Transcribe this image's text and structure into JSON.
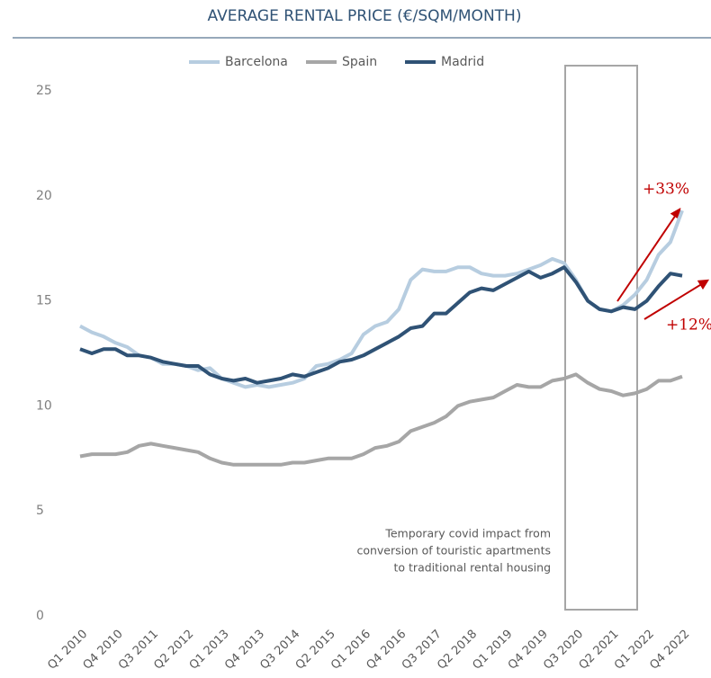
{
  "chart_data": {
    "type": "line",
    "title": "AVERAGE RENTAL PRICE (€/SQM/MONTH)",
    "categories": [
      "Q1 2010",
      null,
      null,
      "Q4 2010",
      null,
      null,
      "Q3 2011",
      null,
      null,
      "Q2 2012",
      null,
      null,
      "Q1 2013",
      null,
      null,
      "Q4 2013",
      null,
      null,
      "Q3 2014",
      null,
      null,
      "Q2 2015",
      null,
      null,
      "Q1 2016",
      null,
      null,
      "Q4 2016",
      null,
      null,
      "Q3 2017",
      null,
      null,
      "Q2 2018",
      null,
      null,
      "Q1 2019",
      null,
      null,
      "Q4 2019",
      null,
      null,
      "Q3 2020",
      null,
      null,
      "Q2 2021",
      null,
      null,
      "Q1 2022",
      null,
      null,
      "Q4 2022"
    ],
    "series": [
      {
        "name": "Barcelona",
        "color": "#b7cde0",
        "values": [
          13.8,
          13.5,
          13.3,
          13.0,
          12.8,
          12.4,
          12.3,
          12.0,
          12.0,
          11.9,
          11.7,
          11.8,
          11.3,
          11.1,
          10.9,
          11.0,
          10.9,
          11.0,
          11.1,
          11.3,
          11.9,
          12.0,
          12.2,
          12.5,
          13.4,
          13.8,
          14.0,
          14.6,
          16.0,
          16.5,
          16.4,
          16.4,
          16.6,
          16.6,
          16.3,
          16.2,
          16.2,
          16.3,
          16.5,
          16.7,
          17.0,
          16.8,
          16.0,
          15.0,
          14.6,
          14.5,
          14.8,
          15.3,
          16.0,
          17.2,
          17.8,
          19.3
        ]
      },
      {
        "name": "Spain",
        "color": "#a6a6a6",
        "values": [
          7.6,
          7.7,
          7.7,
          7.7,
          7.8,
          8.1,
          8.2,
          8.1,
          8.0,
          7.9,
          7.8,
          7.5,
          7.3,
          7.2,
          7.2,
          7.2,
          7.2,
          7.2,
          7.3,
          7.3,
          7.4,
          7.5,
          7.5,
          7.5,
          7.7,
          8.0,
          8.1,
          8.3,
          8.8,
          9.0,
          9.2,
          9.5,
          10.0,
          10.2,
          10.3,
          10.4,
          10.7,
          11.0,
          10.9,
          10.9,
          11.2,
          11.3,
          11.5,
          11.1,
          10.8,
          10.7,
          10.5,
          10.6,
          10.8,
          11.2,
          11.2,
          11.4
        ]
      },
      {
        "name": "Madrid",
        "color": "#2f5275",
        "values": [
          12.7,
          12.5,
          12.7,
          12.7,
          12.4,
          12.4,
          12.3,
          12.1,
          12.0,
          11.9,
          11.9,
          11.5,
          11.3,
          11.2,
          11.3,
          11.1,
          11.2,
          11.3,
          11.5,
          11.4,
          11.6,
          11.8,
          12.1,
          12.2,
          12.4,
          12.7,
          13.0,
          13.3,
          13.7,
          13.8,
          14.4,
          14.4,
          14.9,
          15.4,
          15.6,
          15.5,
          15.8,
          16.1,
          16.4,
          16.1,
          16.3,
          16.6,
          15.9,
          15.0,
          14.6,
          14.5,
          14.7,
          14.6,
          15.0,
          15.7,
          16.3,
          16.2
        ]
      }
    ],
    "ylim": [
      0,
      25
    ],
    "yticks": [
      0,
      5,
      10,
      15,
      20,
      25
    ],
    "grid": false,
    "legend": "top",
    "annotations": [
      "+33%",
      "+12%"
    ],
    "note": [
      "Temporary covid impact from",
      "conversion of touristic apartments",
      "to traditional rental housing"
    ]
  }
}
